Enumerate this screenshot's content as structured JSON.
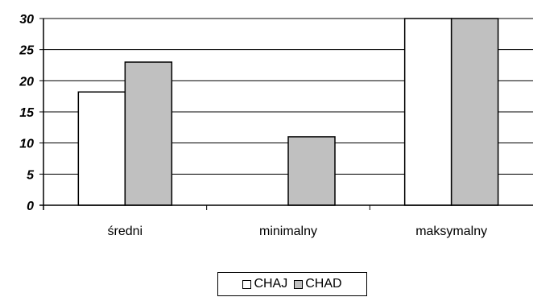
{
  "chart_data": {
    "type": "bar",
    "categories": [
      "średni",
      "minimalny",
      "maksymalny"
    ],
    "series": [
      {
        "name": "CHAJ",
        "values": [
          18.2,
          0,
          30
        ],
        "color": "#ffffff"
      },
      {
        "name": "CHAD",
        "values": [
          23,
          11,
          30
        ],
        "color": "#c0c0c0"
      }
    ],
    "yticks": [
      0,
      5,
      10,
      15,
      20,
      25,
      30
    ],
    "ylim": [
      0,
      30
    ],
    "grid": true,
    "legend_position": "bottom",
    "title": "",
    "xlabel": "",
    "ylabel": ""
  }
}
